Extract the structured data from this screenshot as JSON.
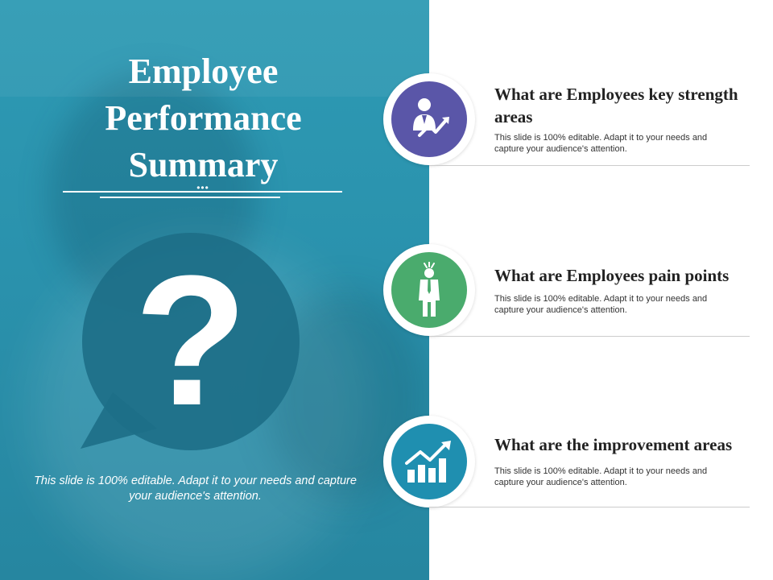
{
  "title": "Employee\nPerformance\nSummary",
  "left_caption": "This slide is 100% editable. Adapt it to your needs and capture your audience's attention.",
  "colors": {
    "panel": "#2a92ad",
    "icon_1": "#5a56a8",
    "icon_2": "#4aab6d",
    "icon_3": "#1f8fb0"
  },
  "items": [
    {
      "icon": "businessman-growth-icon",
      "title": "What are Employees key strength areas",
      "description": "This slide is 100% editable. Adapt it to your needs and capture your audience's attention."
    },
    {
      "icon": "stressed-employee-icon",
      "title": "What are Employees pain points",
      "description": "This slide is 100% editable. Adapt it to your needs and capture your audience's attention."
    },
    {
      "icon": "bar-chart-growth-icon",
      "title": "What are the improvement areas",
      "description": "This slide is 100% editable. Adapt it to your needs and capture your audience's attention."
    }
  ]
}
